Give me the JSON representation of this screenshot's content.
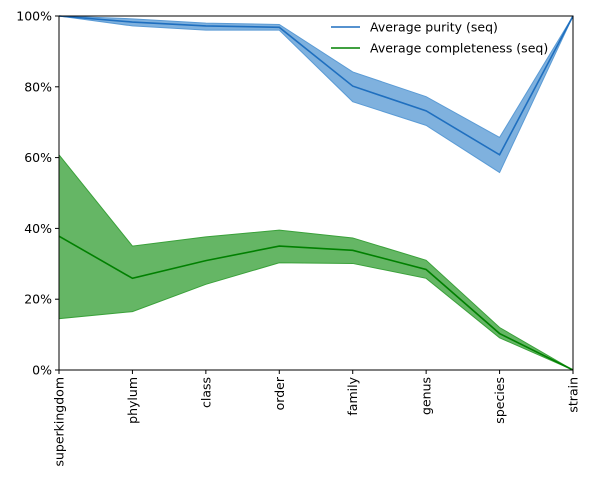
{
  "chart_data": {
    "type": "line",
    "categories": [
      "superkingdom",
      "phylum",
      "class",
      "order",
      "family",
      "genus",
      "species",
      "strain"
    ],
    "y_tick_labels": [
      "0%",
      "20%",
      "40%",
      "60%",
      "80%",
      "100%"
    ],
    "ylim": [
      0,
      100
    ],
    "grid": false,
    "legend_position": "top-right",
    "series": [
      {
        "name": "Average purity (seq)",
        "color": "#1f6fbf",
        "band_color": "#5b9bd5",
        "values": [
          100,
          98.3,
          97.2,
          96.8,
          80.2,
          73.2,
          60.8,
          100
        ],
        "lower": [
          100,
          97.2,
          96.0,
          96.0,
          75.8,
          69.1,
          55.8,
          100
        ],
        "upper": [
          100,
          99.2,
          98.0,
          97.6,
          84.2,
          77.2,
          65.7,
          100
        ]
      },
      {
        "name": "Average completeness (seq)",
        "color": "#008000",
        "band_color": "#3aa13a",
        "values": [
          37.8,
          25.9,
          30.9,
          35.0,
          33.8,
          28.4,
          10.3,
          0
        ],
        "lower": [
          14.5,
          16.5,
          24.2,
          30.3,
          30.1,
          25.9,
          9.1,
          0
        ],
        "upper": [
          60.8,
          35.0,
          37.6,
          39.5,
          37.3,
          31.0,
          12.0,
          0
        ]
      }
    ]
  }
}
